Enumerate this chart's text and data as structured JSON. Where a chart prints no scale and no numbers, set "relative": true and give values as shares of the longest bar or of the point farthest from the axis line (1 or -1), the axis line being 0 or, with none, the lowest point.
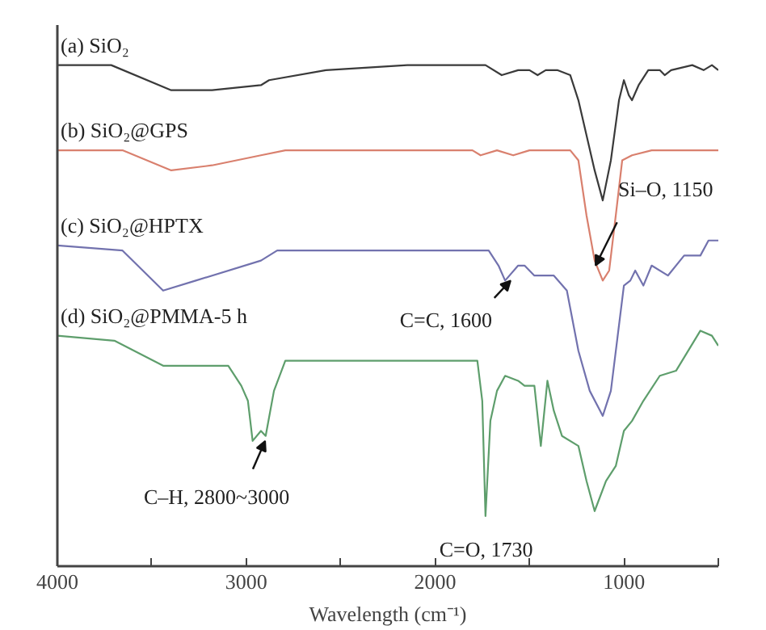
{
  "chart_data": {
    "type": "line",
    "relative": true,
    "xlabel": "Wavelength (cm⁻¹)",
    "xlim": [
      4000,
      500
    ],
    "xticks": [
      4000,
      {
        "value": 3500,
        "label": null
      },
      3000,
      {
        "value": 2500,
        "label": null
      },
      2000,
      {
        "value": 1500,
        "label": null
      },
      1000,
      {
        "value": 500,
        "label": null
      }
    ],
    "grid": false,
    "marker": "none",
    "line_style": "solid",
    "series": [
      {
        "name": "(a) SiO₂",
        "color": "#3a3a3a",
        "x": [
          4000,
          3715,
          3397,
          3181,
          2922,
          2879,
          2578,
          2147,
          1733,
          1647,
          1560,
          1500,
          1457,
          1414,
          1353,
          1284,
          1241,
          1198,
          1155,
          1112,
          1069,
          1026,
          1000,
          974,
          957,
          922,
          871,
          810,
          784,
          750,
          638,
          578,
          534,
          500
        ],
        "values": [
          1.0,
          1.0,
          0.95,
          0.95,
          0.96,
          0.97,
          0.99,
          1.0,
          1.0,
          0.98,
          0.99,
          0.99,
          0.98,
          0.99,
          0.99,
          0.98,
          0.93,
          0.86,
          0.79,
          0.73,
          0.81,
          0.93,
          0.97,
          0.94,
          0.93,
          0.96,
          0.99,
          0.99,
          0.98,
          0.99,
          1.0,
          0.99,
          1.0,
          0.99
        ]
      },
      {
        "name": "(b) SiO₂@GPS",
        "color": "#d9806e",
        "x": [
          4000,
          3655,
          3397,
          3181,
          2922,
          2793,
          2578,
          1802,
          1759,
          1672,
          1586,
          1500,
          1371,
          1284,
          1241,
          1198,
          1155,
          1112,
          1078,
          1043,
          1009,
          957,
          853,
          681,
          500
        ],
        "values": [
          0.83,
          0.83,
          0.79,
          0.8,
          0.82,
          0.83,
          0.83,
          0.83,
          0.82,
          0.83,
          0.82,
          0.83,
          0.83,
          0.83,
          0.81,
          0.7,
          0.61,
          0.57,
          0.59,
          0.7,
          0.81,
          0.82,
          0.83,
          0.83,
          0.83
        ]
      },
      {
        "name": "(c) SiO₂@HPTX",
        "color": "#7272ae",
        "x": [
          4000,
          3655,
          3440,
          3267,
          2922,
          2836,
          2578,
          2147,
          1716,
          1664,
          1629,
          1560,
          1526,
          1474,
          1371,
          1302,
          1241,
          1181,
          1112,
          1069,
          1000,
          966,
          940,
          897,
          853,
          767,
          681,
          595,
          552,
          500
        ],
        "values": [
          0.64,
          0.63,
          0.55,
          0.57,
          0.61,
          0.63,
          0.63,
          0.63,
          0.63,
          0.6,
          0.57,
          0.6,
          0.6,
          0.58,
          0.58,
          0.55,
          0.43,
          0.35,
          0.3,
          0.35,
          0.56,
          0.57,
          0.59,
          0.56,
          0.6,
          0.58,
          0.62,
          0.62,
          0.65,
          0.65
        ]
      },
      {
        "name": "(d) SiO₂@PMMA-5 h",
        "color": "#5e9e6c",
        "x": [
          4000,
          3698,
          3440,
          3095,
          3026,
          2991,
          2966,
          2922,
          2897,
          2853,
          2793,
          2578,
          2147,
          1776,
          1750,
          1733,
          1707,
          1672,
          1629,
          1560,
          1526,
          1474,
          1440,
          1405,
          1371,
          1328,
          1241,
          1198,
          1155,
          1095,
          1043,
          1000,
          957,
          897,
          810,
          724,
          595,
          534,
          500
        ],
        "values": [
          0.46,
          0.45,
          0.4,
          0.4,
          0.36,
          0.33,
          0.25,
          0.27,
          0.26,
          0.35,
          0.41,
          0.41,
          0.41,
          0.41,
          0.33,
          0.1,
          0.29,
          0.35,
          0.38,
          0.37,
          0.36,
          0.36,
          0.24,
          0.37,
          0.31,
          0.26,
          0.24,
          0.17,
          0.11,
          0.17,
          0.2,
          0.27,
          0.29,
          0.33,
          0.38,
          0.39,
          0.47,
          0.46,
          0.44
        ]
      }
    ],
    "annotations": [
      {
        "text": "Si–O, 1150",
        "x": 1150,
        "y": 0.6
      },
      {
        "text": "C=C, 1600",
        "x": 1600,
        "y": 0.57
      },
      {
        "text": "C–H, 2800~3000",
        "x": 2900,
        "y": 0.25
      },
      {
        "text": "C=O, 1730",
        "x": 1730,
        "y": 0.1
      }
    ]
  }
}
